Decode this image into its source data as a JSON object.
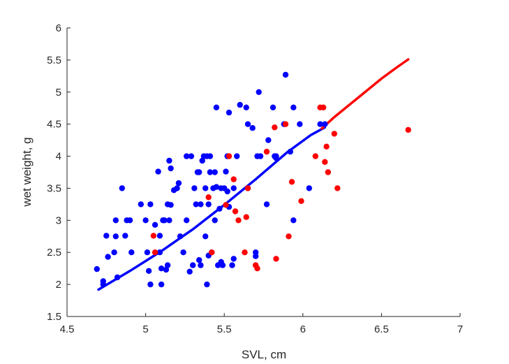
{
  "chart_data": {
    "type": "scatter",
    "title": "",
    "xlabel": "SVL, cm",
    "ylabel": "wet weight, g",
    "xlim": [
      4.5,
      7
    ],
    "ylim": [
      1.5,
      6
    ],
    "xticks": [
      "4.5",
      "5",
      "5.5",
      "6",
      "6.5",
      "7"
    ],
    "yticks": [
      "1.5",
      "2",
      "2.5",
      "3",
      "3.5",
      "4",
      "4.5",
      "5",
      "5.5",
      "6"
    ],
    "grid": false,
    "box": "left-bottom",
    "series": [
      {
        "kind": "points",
        "color": "#0000ff",
        "points": [
          [
            4.69,
            2.24
          ],
          [
            4.73,
            2.0
          ],
          [
            4.73,
            2.05
          ],
          [
            4.75,
            2.76
          ],
          [
            4.76,
            2.43
          ],
          [
            4.8,
            2.5
          ],
          [
            4.81,
            3.0
          ],
          [
            4.81,
            2.75
          ],
          [
            4.82,
            2.11
          ],
          [
            4.85,
            3.5
          ],
          [
            4.87,
            2.76
          ],
          [
            4.88,
            3.0
          ],
          [
            4.9,
            3.0
          ],
          [
            4.91,
            2.5
          ],
          [
            4.97,
            3.25
          ],
          [
            5.0,
            3.0
          ],
          [
            5.01,
            2.5
          ],
          [
            5.02,
            2.21
          ],
          [
            5.03,
            3.25
          ],
          [
            5.03,
            2.0
          ],
          [
            5.06,
            2.93
          ],
          [
            5.08,
            3.76
          ],
          [
            5.09,
            2.5
          ],
          [
            5.09,
            2.76
          ],
          [
            5.1,
            2.25
          ],
          [
            5.1,
            2.0
          ],
          [
            5.11,
            3.0
          ],
          [
            5.12,
            3.0
          ],
          [
            5.13,
            2.23
          ],
          [
            5.14,
            2.3
          ],
          [
            5.14,
            3.25
          ],
          [
            5.15,
            3.93
          ],
          [
            5.15,
            3.0
          ],
          [
            5.16,
            3.24
          ],
          [
            5.16,
            3.81
          ],
          [
            5.18,
            3.47
          ],
          [
            5.2,
            3.5
          ],
          [
            5.21,
            3.58
          ],
          [
            5.22,
            2.75
          ],
          [
            5.24,
            2.5
          ],
          [
            5.26,
            4.0
          ],
          [
            5.26,
            3.0
          ],
          [
            5.28,
            2.2
          ],
          [
            5.29,
            4.0
          ],
          [
            5.3,
            2.3
          ],
          [
            5.31,
            3.5
          ],
          [
            5.32,
            3.25
          ],
          [
            5.33,
            3.75
          ],
          [
            5.34,
            2.38
          ],
          [
            5.34,
            3.75
          ],
          [
            5.35,
            2.3
          ],
          [
            5.35,
            3.25
          ],
          [
            5.36,
            3.93
          ],
          [
            5.37,
            4.0
          ],
          [
            5.38,
            2.75
          ],
          [
            5.38,
            3.5
          ],
          [
            5.39,
            2.0
          ],
          [
            5.39,
            4.0
          ],
          [
            5.4,
            2.45
          ],
          [
            5.4,
            3.25
          ],
          [
            5.41,
            3.75
          ],
          [
            5.41,
            4.0
          ],
          [
            5.42,
            2.5
          ],
          [
            5.43,
            3.5
          ],
          [
            5.44,
            3.0
          ],
          [
            5.44,
            3.75
          ],
          [
            5.45,
            3.52
          ],
          [
            5.45,
            4.76
          ],
          [
            5.46,
            2.3
          ],
          [
            5.47,
            3.18
          ],
          [
            5.48,
            2.35
          ],
          [
            5.48,
            3.5
          ],
          [
            5.49,
            2.3
          ],
          [
            5.5,
            3.5
          ],
          [
            5.51,
            3.76
          ],
          [
            5.52,
            4.0
          ],
          [
            5.52,
            3.45
          ],
          [
            5.53,
            4.68
          ],
          [
            5.53,
            3.21
          ],
          [
            5.55,
            2.3
          ],
          [
            5.56,
            2.4
          ],
          [
            5.56,
            3.5
          ],
          [
            5.58,
            4.0
          ],
          [
            5.6,
            4.8
          ],
          [
            5.64,
            4.76
          ],
          [
            5.65,
            4.5
          ],
          [
            5.65,
            3.5
          ],
          [
            5.68,
            4.44
          ],
          [
            5.7,
            2.5
          ],
          [
            5.7,
            2.44
          ],
          [
            5.71,
            4.0
          ],
          [
            5.72,
            5.0
          ],
          [
            5.73,
            4.0
          ],
          [
            5.77,
            3.25
          ],
          [
            5.78,
            4.25
          ],
          [
            5.81,
            4.76
          ],
          [
            5.82,
            4.0
          ],
          [
            5.83,
            4.0
          ],
          [
            5.83,
            3.97
          ],
          [
            5.88,
            4.5
          ],
          [
            5.89,
            5.27
          ],
          [
            5.92,
            4.07
          ],
          [
            5.94,
            3.0
          ],
          [
            5.94,
            4.76
          ],
          [
            5.98,
            4.5
          ],
          [
            6.04,
            3.5
          ],
          [
            6.11,
            4.5
          ],
          [
            6.14,
            4.5
          ]
        ]
      },
      {
        "kind": "points",
        "color": "#ff0000",
        "points": [
          [
            5.05,
            2.76
          ],
          [
            5.06,
            2.5
          ],
          [
            5.4,
            3.36
          ],
          [
            5.42,
            2.5
          ],
          [
            5.51,
            3.24
          ],
          [
            5.53,
            4.0
          ],
          [
            5.56,
            3.64
          ],
          [
            5.57,
            3.14
          ],
          [
            5.59,
            3.0
          ],
          [
            5.63,
            2.5
          ],
          [
            5.64,
            3.05
          ],
          [
            5.65,
            3.5
          ],
          [
            5.7,
            2.3
          ],
          [
            5.71,
            2.25
          ],
          [
            5.77,
            4.07
          ],
          [
            5.82,
            4.45
          ],
          [
            5.83,
            2.4
          ],
          [
            5.89,
            4.5
          ],
          [
            5.91,
            2.75
          ],
          [
            5.93,
            3.6
          ],
          [
            5.99,
            3.3
          ],
          [
            6.08,
            4.0
          ],
          [
            6.11,
            4.76
          ],
          [
            6.13,
            4.76
          ],
          [
            6.14,
            3.91
          ],
          [
            6.15,
            4.15
          ],
          [
            6.16,
            3.75
          ],
          [
            6.2,
            4.35
          ],
          [
            6.22,
            3.5
          ],
          [
            6.67,
            4.41
          ]
        ]
      },
      {
        "kind": "line",
        "color": "#0000ff",
        "x": [
          4.7,
          4.9,
          5.1,
          5.3,
          5.5,
          5.7,
          5.9,
          6.05,
          6.14
        ],
        "y": [
          1.92,
          2.21,
          2.52,
          2.86,
          3.24,
          3.64,
          4.06,
          4.33,
          4.45
        ]
      },
      {
        "kind": "line",
        "color": "#ff0000",
        "x": [
          6.12,
          6.2,
          6.3,
          6.4,
          6.5,
          6.6,
          6.67
        ],
        "y": [
          4.43,
          4.61,
          4.81,
          5.01,
          5.21,
          5.39,
          5.51
        ]
      }
    ]
  }
}
